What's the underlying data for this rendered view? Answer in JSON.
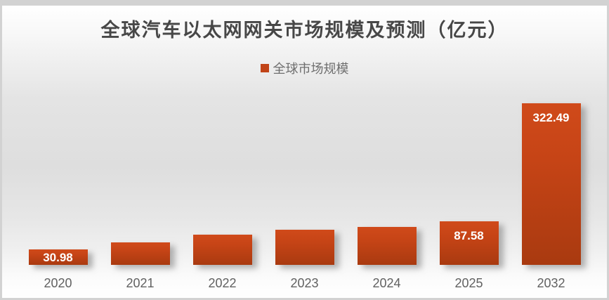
{
  "title": "全球汽车以太网网关市场规模及预测（亿元）",
  "legend": {
    "label": "全球市场规模",
    "swatch_color": "#c14418"
  },
  "chart_data": {
    "type": "bar",
    "title": "全球汽车以太网网关市场规模及预测（亿元）",
    "series_name": "全球市场规模",
    "categories": [
      "2020",
      "2021",
      "2022",
      "2023",
      "2024",
      "2025",
      "2032"
    ],
    "values": [
      30.98,
      45.0,
      60.4,
      69.6,
      75.9,
      87.58,
      322.49
    ],
    "data_labels": [
      "30.98",
      null,
      null,
      null,
      null,
      "87.58",
      "322.49"
    ],
    "estimated_years": [
      "2021",
      "2022",
      "2023",
      "2024"
    ],
    "xlabel": "",
    "ylabel": "",
    "ylim": [
      0,
      340
    ],
    "grid": false,
    "legend_position": "top-center",
    "bar_color_top": "#d04a1a",
    "bar_color_bottom": "#a93a10",
    "label_color": "#ffffff"
  },
  "colors": {
    "frame_border": "#d2d2d2",
    "background_mid": "#dedede",
    "title_text": "#474747",
    "axis_text": "#616161",
    "legend_text": "#6e6e6e"
  }
}
